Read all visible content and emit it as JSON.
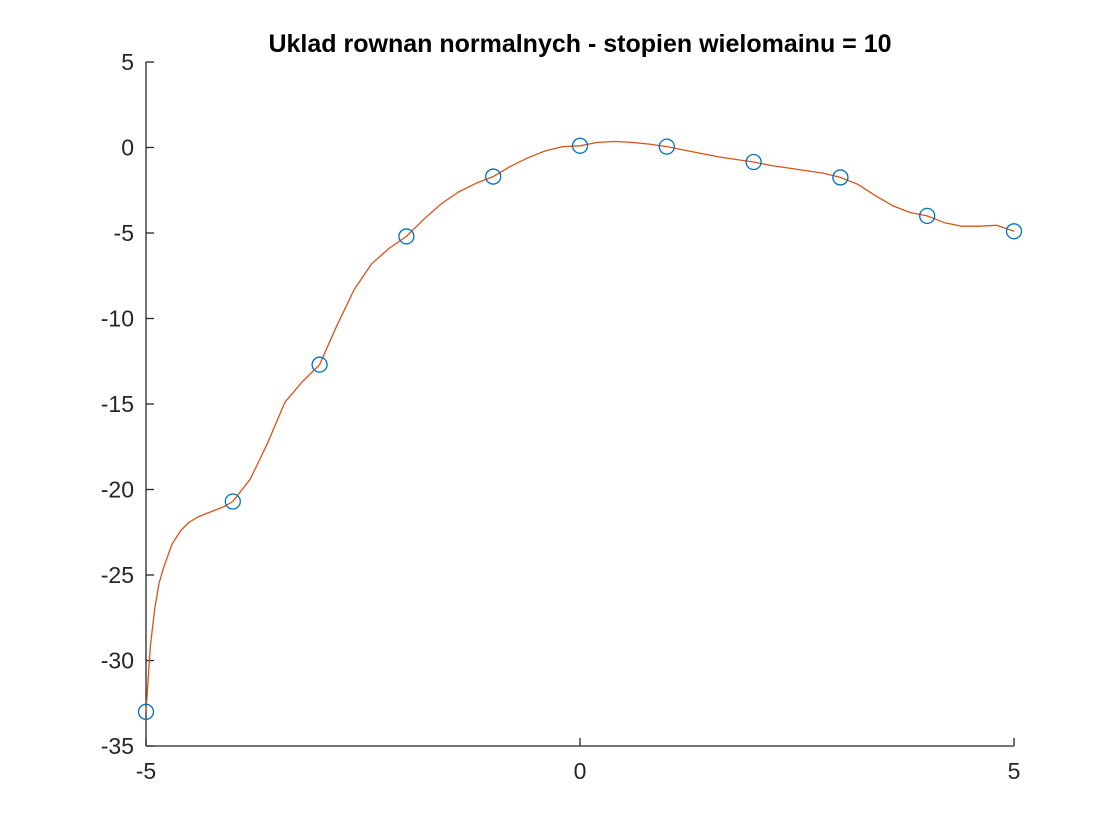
{
  "chart_data": {
    "type": "line",
    "title": "Uklad rownan normalnych - stopien wielomainu = 10",
    "xlabel": "",
    "ylabel": "",
    "xlim": [
      -5,
      5
    ],
    "ylim": [
      -35,
      5
    ],
    "xticks": [
      -5,
      0,
      5
    ],
    "yticks": [
      5,
      0,
      -5,
      -10,
      -15,
      -20,
      -25,
      -30,
      -35
    ],
    "grid": false,
    "series": [
      {
        "kind": "markers",
        "marker": "circle",
        "color": "#0072BD",
        "x": [
          -5,
          -4,
          -3,
          -2,
          -1,
          0,
          1,
          2,
          3,
          4,
          5
        ],
        "y": [
          -33.0,
          -20.7,
          -12.7,
          -5.2,
          -1.7,
          0.1,
          0.05,
          -0.85,
          -1.75,
          -4.0,
          -4.9
        ]
      },
      {
        "kind": "line",
        "color": "#D95319",
        "x": [
          -5,
          -4.95,
          -4.9,
          -4.85,
          -4.8,
          -4.7,
          -4.6,
          -4.5,
          -4.4,
          -4.3,
          -4.2,
          -4.1,
          -4.0,
          -3.8,
          -3.6,
          -3.4,
          -3.2,
          -3.0,
          -2.8,
          -2.6,
          -2.4,
          -2.2,
          -2.0,
          -1.8,
          -1.6,
          -1.4,
          -1.2,
          -1.0,
          -0.8,
          -0.6,
          -0.4,
          -0.2,
          0.0,
          0.2,
          0.4,
          0.6,
          0.8,
          1.0,
          1.2,
          1.4,
          1.6,
          1.8,
          2.0,
          2.2,
          2.4,
          2.6,
          2.8,
          3.0,
          3.2,
          3.4,
          3.6,
          3.8,
          4.0,
          4.2,
          4.4,
          4.6,
          4.8,
          5.0
        ],
        "y": [
          -33.0,
          -29.2,
          -27.0,
          -25.5,
          -24.6,
          -23.2,
          -22.4,
          -21.9,
          -21.6,
          -21.4,
          -21.2,
          -21.0,
          -20.7,
          -19.4,
          -17.3,
          -14.9,
          -13.7,
          -12.7,
          -10.4,
          -8.3,
          -6.8,
          -5.9,
          -5.2,
          -4.2,
          -3.3,
          -2.6,
          -2.1,
          -1.7,
          -1.1,
          -0.6,
          -0.2,
          0.05,
          0.1,
          0.3,
          0.35,
          0.3,
          0.2,
          0.05,
          -0.15,
          -0.35,
          -0.55,
          -0.7,
          -0.85,
          -1.05,
          -1.2,
          -1.35,
          -1.5,
          -1.75,
          -2.15,
          -2.8,
          -3.4,
          -3.8,
          -4.0,
          -4.4,
          -4.6,
          -4.6,
          -4.55,
          -4.9
        ]
      }
    ]
  }
}
